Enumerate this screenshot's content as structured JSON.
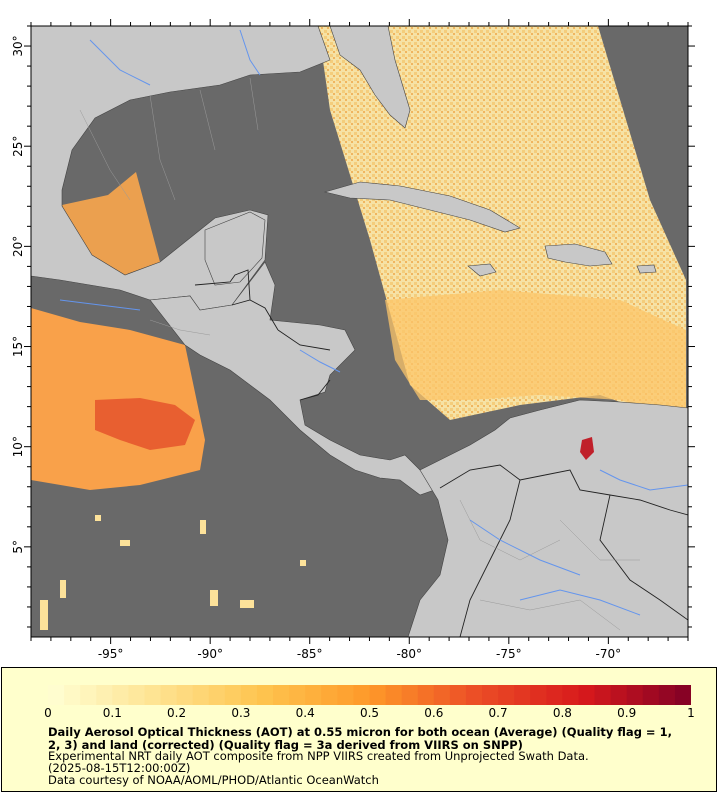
{
  "map": {
    "lon_ticks": [
      "-95°",
      "-90°",
      "-85°",
      "-80°",
      "-75°",
      "-70°"
    ],
    "lat_ticks": [
      "30°",
      "25°",
      "20°",
      "15°",
      "10°",
      "5°"
    ],
    "lon_range": [
      -99,
      -66
    ],
    "lat_range": [
      0.5,
      31
    ],
    "colors": {
      "no_data": "#696969",
      "land": "#c8c8c8",
      "river": "#6495ed"
    }
  },
  "colorbar": {
    "labels": [
      "0",
      "0.1",
      "0.2",
      "0.3",
      "0.4",
      "0.5",
      "0.6",
      "0.7",
      "0.8",
      "0.9",
      "1"
    ],
    "range": [
      0,
      1
    ],
    "colors": [
      "#ffffd4",
      "#fee391",
      "#fec44f",
      "#fe9929",
      "#ec4d26",
      "#d7191c",
      "#800026"
    ]
  },
  "caption": {
    "title": "Daily Aerosol Optical Thickness (AOT) at 0.55 micron for both ocean (Average) (Quality flag = 1, 2, 3) and land (corrected) (Quality flag = 3a derived from VIIRS on SNPP)",
    "line1": "Experimental NRT daily AOT composite from NPP VIIRS created from Unprojected Swath Data.",
    "line2": "(2025-08-15T12:00:00Z)",
    "line3": "Data courtesy of NOAA/AOML/PHOD/Atlantic OceanWatch"
  }
}
